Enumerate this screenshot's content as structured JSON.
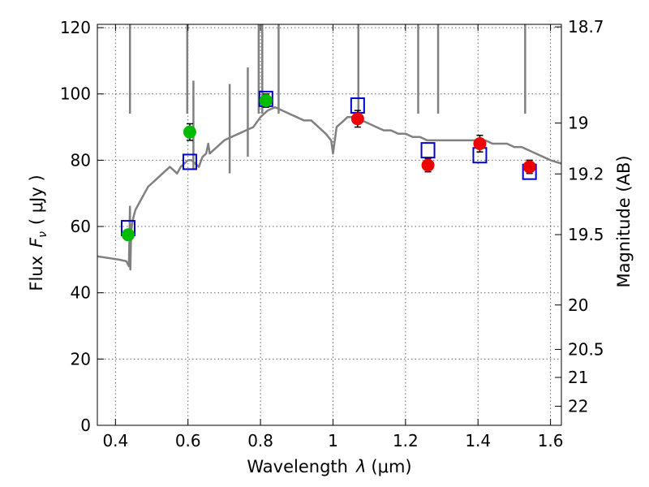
{
  "chart_data": {
    "type": "scatter",
    "xlabel": "Wavelength",
    "xlabel_symbol": "λ",
    "xlabel_unit": "(μm)",
    "ylabel": "Flux",
    "ylabel_symbol": "F",
    "ylabel_subscript": "ν",
    "ylabel_unit": "( μJy )",
    "y2label": "Magnitude (AB)",
    "xlim": [
      0.35,
      1.63
    ],
    "ylim": [
      0,
      121
    ],
    "grid": true,
    "x_ticks": [
      0.4,
      0.6,
      0.8,
      1.0,
      1.2,
      1.4,
      1.6
    ],
    "x_tick_labels": [
      "0.4",
      "0.6",
      "0.8",
      "1",
      "1.2",
      "1.4",
      "1.6"
    ],
    "y_ticks": [
      0,
      20,
      40,
      60,
      80,
      100,
      120
    ],
    "y_tick_labels": [
      "0",
      "20",
      "40",
      "60",
      "80",
      "100",
      "120"
    ],
    "y2_ticks": [
      18.7,
      19,
      19.2,
      19.5,
      20,
      20.5,
      21,
      22
    ],
    "y2_tick_labels": [
      "18.7",
      "19",
      "19.2",
      "19.5",
      "20",
      "20.5",
      "21",
      "22"
    ],
    "series": [
      {
        "kind": "model-spectrum",
        "color": "#808080",
        "x": [
          0.35,
          0.38,
          0.41,
          0.43,
          0.437,
          0.44,
          0.441,
          0.443,
          0.445,
          0.448,
          0.45,
          0.455,
          0.46,
          0.47,
          0.48,
          0.49,
          0.5,
          0.51,
          0.52,
          0.53,
          0.54,
          0.55,
          0.56,
          0.57,
          0.58,
          0.59,
          0.6,
          0.61,
          0.62,
          0.63,
          0.64,
          0.65,
          0.656,
          0.66,
          0.67,
          0.68,
          0.7,
          0.72,
          0.74,
          0.76,
          0.78,
          0.8,
          0.82,
          0.84,
          0.86,
          0.88,
          0.9,
          0.92,
          0.94,
          0.96,
          0.98,
          0.995,
          1.0,
          1.01,
          1.02,
          1.03,
          1.04,
          1.06,
          1.08,
          1.1,
          1.12,
          1.14,
          1.16,
          1.18,
          1.2,
          1.22,
          1.24,
          1.26,
          1.28,
          1.3,
          1.32,
          1.34,
          1.36,
          1.38,
          1.4,
          1.42,
          1.44,
          1.46,
          1.48,
          1.5,
          1.52,
          1.54,
          1.56,
          1.58,
          1.6,
          1.63
        ],
        "y": [
          51,
          50.5,
          50,
          49.5,
          48,
          66,
          47,
          58,
          60,
          62,
          63,
          65,
          66,
          68,
          70,
          72,
          73,
          74,
          75,
          76,
          77,
          78,
          77,
          76,
          78,
          79,
          80,
          80,
          79,
          78,
          81,
          82,
          85,
          82,
          83,
          84,
          86,
          87,
          88,
          89,
          90,
          93,
          95,
          96,
          95,
          94,
          93,
          92,
          92,
          90,
          88,
          86,
          82,
          90,
          91,
          92,
          93,
          93,
          92,
          91,
          90,
          89,
          89,
          88,
          88,
          87,
          87,
          86,
          86,
          86,
          86,
          86,
          86,
          86,
          86,
          86,
          85,
          85,
          85,
          84,
          84,
          83,
          82,
          81,
          80,
          79
        ]
      },
      {
        "kind": "model-emission-lines",
        "color": "#808080",
        "lines": [
          {
            "x": 0.44,
            "peak": 121
          },
          {
            "x": 0.598,
            "peak": 121
          },
          {
            "x": 0.615,
            "peak": 104
          },
          {
            "x": 0.715,
            "peak": 103
          },
          {
            "x": 0.765,
            "peak": 108
          },
          {
            "x": 0.795,
            "peak": 121
          },
          {
            "x": 0.805,
            "peak": 121
          },
          {
            "x": 0.85,
            "peak": 121
          },
          {
            "x": 1.07,
            "peak": 121
          },
          {
            "x": 1.235,
            "peak": 121
          },
          {
            "x": 1.29,
            "peak": 121
          },
          {
            "x": 1.53,
            "peak": 121
          }
        ]
      },
      {
        "kind": "model-photometry",
        "marker": "open-square",
        "color": "#0000cc",
        "x": [
          0.435,
          0.605,
          0.815,
          1.068,
          1.262,
          1.405,
          1.542
        ],
        "y": [
          59.5,
          79.5,
          98.5,
          96.5,
          83,
          81.5,
          76.5
        ]
      },
      {
        "kind": "observed-green",
        "marker": "filled-circle",
        "color": "#00bb00",
        "x": [
          0.435,
          0.605,
          0.815
        ],
        "y": [
          57.5,
          88.5,
          98
        ],
        "yerr": [
          1.5,
          2.5,
          2
        ]
      },
      {
        "kind": "observed-red",
        "marker": "filled-circle",
        "color": "#ee0000",
        "x": [
          1.068,
          1.262,
          1.405,
          1.542
        ],
        "y": [
          92.5,
          78.5,
          85,
          78
        ],
        "yerr": [
          2.5,
          2,
          2.5,
          2
        ]
      }
    ]
  }
}
